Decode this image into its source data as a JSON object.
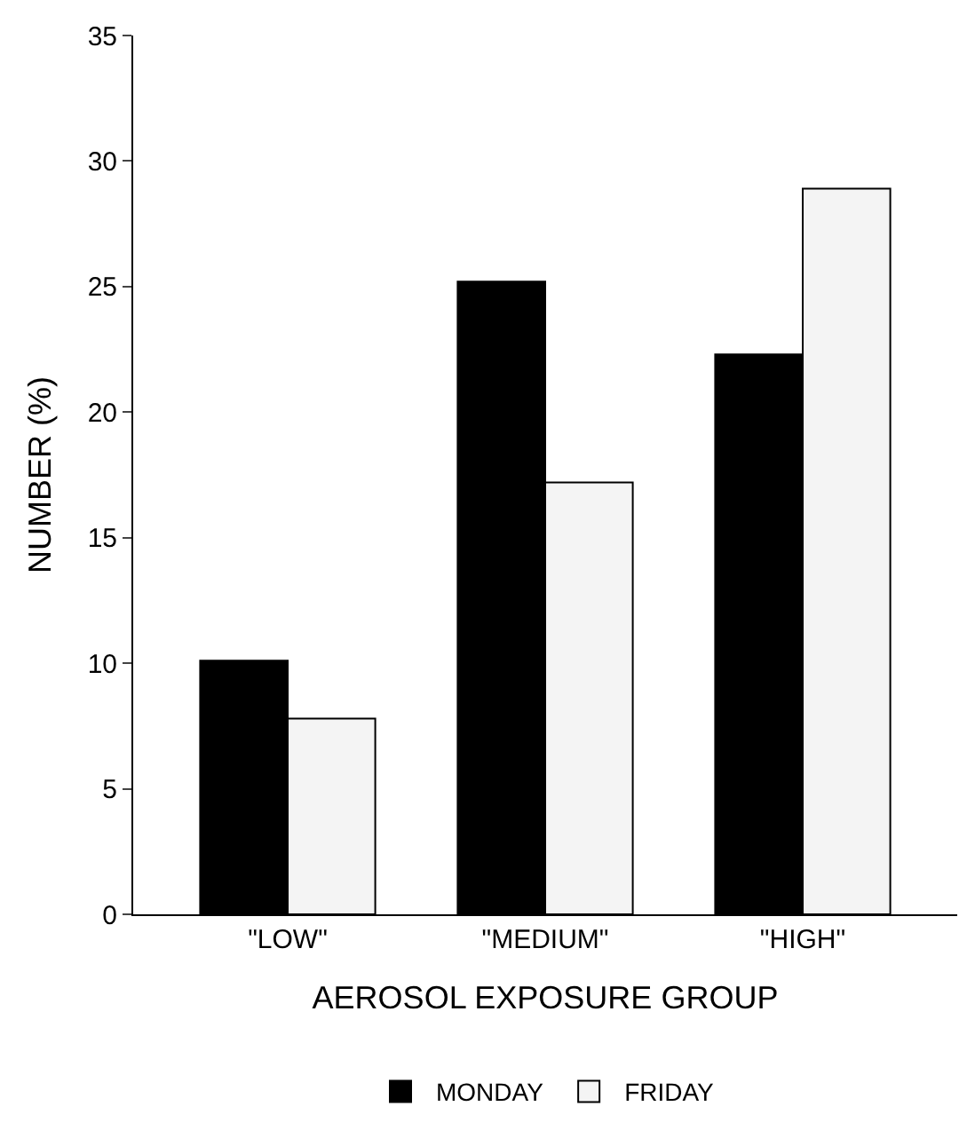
{
  "chart_data": {
    "type": "bar",
    "xlabel": "AEROSOL EXPOSURE GROUP",
    "ylabel": "NUMBER (%)",
    "categories": [
      "\"LOW\"",
      "\"MEDIUM\"",
      "\"HIGH\""
    ],
    "series": [
      {
        "name": "MONDAY",
        "color": "#000000",
        "values": [
          10.1,
          25.2,
          22.3
        ]
      },
      {
        "name": "FRIDAY",
        "color": "#f4f4f4",
        "values": [
          7.8,
          17.2,
          28.9
        ]
      }
    ],
    "ylim": [
      0,
      35
    ],
    "yticks": [
      0,
      5,
      10,
      15,
      20,
      25,
      30,
      35
    ],
    "grid": false,
    "legend": "bottom"
  }
}
